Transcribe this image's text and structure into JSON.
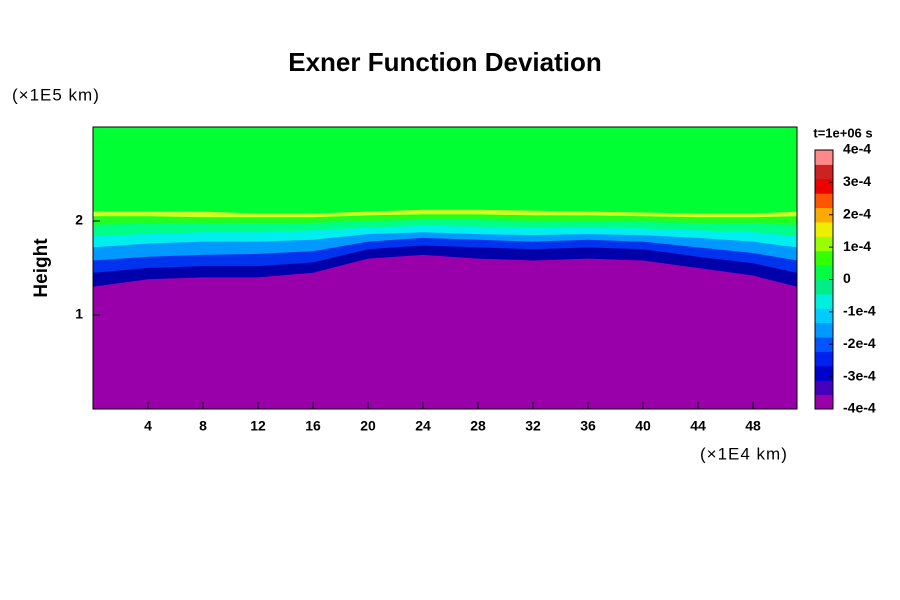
{
  "chart_data": {
    "type": "contour",
    "title": "Exner Function Deviation",
    "ylabel": "Height",
    "yunit": "(×1E5 km)",
    "xunit": "(×1E4 km)",
    "time_label": "t=1e+06 s",
    "xlim": [
      0,
      51.2
    ],
    "ylim": [
      0,
      3
    ],
    "xticks": [
      4,
      8,
      12,
      16,
      20,
      24,
      28,
      32,
      36,
      40,
      44,
      48
    ],
    "yticks": [
      1,
      2
    ],
    "background": "#00ff33",
    "x": [
      0,
      4,
      8,
      12,
      16,
      20,
      24,
      28,
      32,
      36,
      40,
      44,
      48,
      51.2
    ],
    "bands": [
      {
        "color": "#ccff22",
        "values": [
          2.1,
          2.1,
          2.1,
          2.08,
          2.08,
          2.1,
          2.12,
          2.12,
          2.11,
          2.1,
          2.09,
          2.08,
          2.08,
          2.1
        ]
      },
      {
        "color": "#22ff22",
        "values": [
          2.05,
          2.05,
          2.04,
          2.04,
          2.04,
          2.06,
          2.07,
          2.07,
          2.06,
          2.06,
          2.05,
          2.04,
          2.04,
          2.05
        ]
      },
      {
        "color": "#00ff88",
        "values": [
          1.96,
          1.97,
          1.98,
          1.97,
          1.98,
          2.0,
          2.01,
          2.01,
          2.0,
          2.0,
          1.99,
          1.98,
          1.97,
          1.96
        ]
      },
      {
        "color": "#00eeee",
        "values": [
          1.84,
          1.86,
          1.88,
          1.88,
          1.9,
          1.93,
          1.95,
          1.94,
          1.93,
          1.93,
          1.92,
          1.9,
          1.88,
          1.84
        ]
      },
      {
        "color": "#0099ff",
        "values": [
          1.72,
          1.76,
          1.78,
          1.78,
          1.8,
          1.86,
          1.88,
          1.86,
          1.85,
          1.86,
          1.85,
          1.82,
          1.78,
          1.72
        ]
      },
      {
        "color": "#0033ee",
        "values": [
          1.58,
          1.62,
          1.64,
          1.65,
          1.68,
          1.78,
          1.82,
          1.8,
          1.78,
          1.8,
          1.78,
          1.72,
          1.66,
          1.58
        ]
      },
      {
        "color": "#0000aa",
        "values": [
          1.45,
          1.5,
          1.52,
          1.52,
          1.56,
          1.7,
          1.74,
          1.72,
          1.7,
          1.72,
          1.7,
          1.62,
          1.55,
          1.45
        ]
      },
      {
        "color": "#9900aa",
        "values": [
          1.3,
          1.38,
          1.4,
          1.4,
          1.45,
          1.6,
          1.64,
          1.6,
          1.58,
          1.6,
          1.58,
          1.5,
          1.42,
          1.3
        ]
      }
    ],
    "colorbar_lim": [
      -0.0004,
      0.0004
    ],
    "colorbar_ticks": [
      {
        "value": 0.0004,
        "label": "4e-4"
      },
      {
        "value": 0.0003,
        "label": "3e-4"
      },
      {
        "value": 0.0002,
        "label": "2e-4"
      },
      {
        "value": 0.0001,
        "label": "1e-4"
      },
      0,
      {
        "value": -0.0001,
        "label": "-1e-4"
      },
      {
        "value": -0.0002,
        "label": "-2e-4"
      },
      {
        "value": -0.0003,
        "label": "-3e-4"
      },
      {
        "value": -0.0004,
        "label": "-4e-4"
      }
    ],
    "colorbar_colors": [
      "#9900aa",
      "#4400bb",
      "#0000cc",
      "#0022ee",
      "#0055ff",
      "#0099ff",
      "#00ccff",
      "#00eedd",
      "#00ee88",
      "#00ff44",
      "#33ff00",
      "#99ff00",
      "#eeee00",
      "#ffaa00",
      "#ff5500",
      "#ee0000",
      "#cc2222",
      "#ff8888"
    ]
  }
}
